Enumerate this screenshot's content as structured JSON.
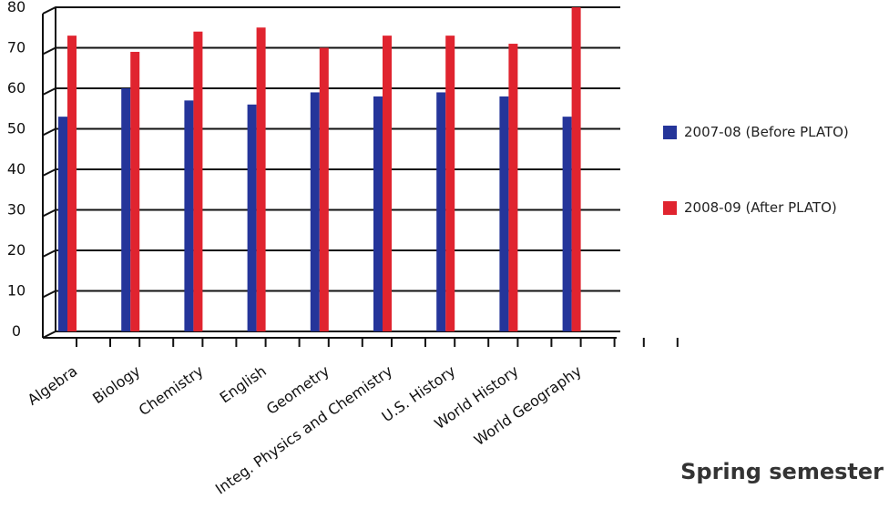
{
  "chart_data": {
    "type": "bar",
    "categories": [
      "Algebra",
      "Biology",
      "Chemistry",
      "English",
      "Geometry",
      "Integ. Physics and Chemistry",
      "U.S. History",
      "World History",
      "World Geography"
    ],
    "series": [
      {
        "name": "2007-08 (Before PLATO)",
        "color": "#25359a",
        "values": [
          53,
          60,
          57,
          56,
          59,
          58,
          59,
          58,
          53
        ]
      },
      {
        "name": "2008-09 (After PLATO)",
        "color": "#e0242f",
        "values": [
          73,
          69,
          74,
          75,
          70,
          73,
          73,
          71,
          80
        ]
      }
    ],
    "y_ticks": [
      "0",
      "10",
      "20",
      "30",
      "40",
      "50",
      "60",
      "70",
      "80"
    ],
    "ylim": [
      0,
      80
    ],
    "grid": true,
    "legend_position": "right",
    "caption": "Spring semester"
  }
}
